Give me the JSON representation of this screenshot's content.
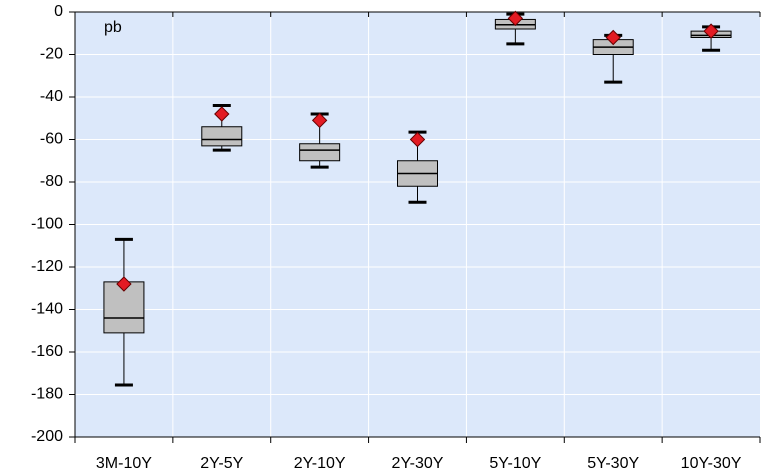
{
  "chart_data": {
    "type": "box",
    "annotation": "pb",
    "categories": [
      "3M-10Y",
      "2Y-5Y",
      "2Y-10Y",
      "2Y-30Y",
      "5Y-10Y",
      "5Y-30Y",
      "10Y-30Y"
    ],
    "min": [
      -175.5,
      -65,
      -73,
      -89.5,
      -15,
      -33,
      -18
    ],
    "q1": [
      -151,
      -63,
      -70,
      -82,
      -8,
      -20,
      -12
    ],
    "median": [
      -144,
      -60,
      -65,
      -76,
      -6,
      -16.5,
      -11
    ],
    "q3": [
      -127,
      -54,
      -62,
      -70,
      -3.5,
      -13,
      -9
    ],
    "max": [
      -107,
      -44,
      -48,
      -56.5,
      -1,
      -11,
      -7
    ],
    "marker": [
      -128,
      -48,
      -51,
      -60,
      -3,
      -12,
      -9
    ],
    "box_color": "#c0c0c0",
    "marker_color": "#e31b23",
    "background": "#dce8fa",
    "ylim": [
      -200,
      0
    ],
    "yticks": [
      -200,
      -180,
      -160,
      -140,
      -120,
      -100,
      -80,
      -60,
      -40,
      -20,
      0
    ],
    "grid": true
  }
}
